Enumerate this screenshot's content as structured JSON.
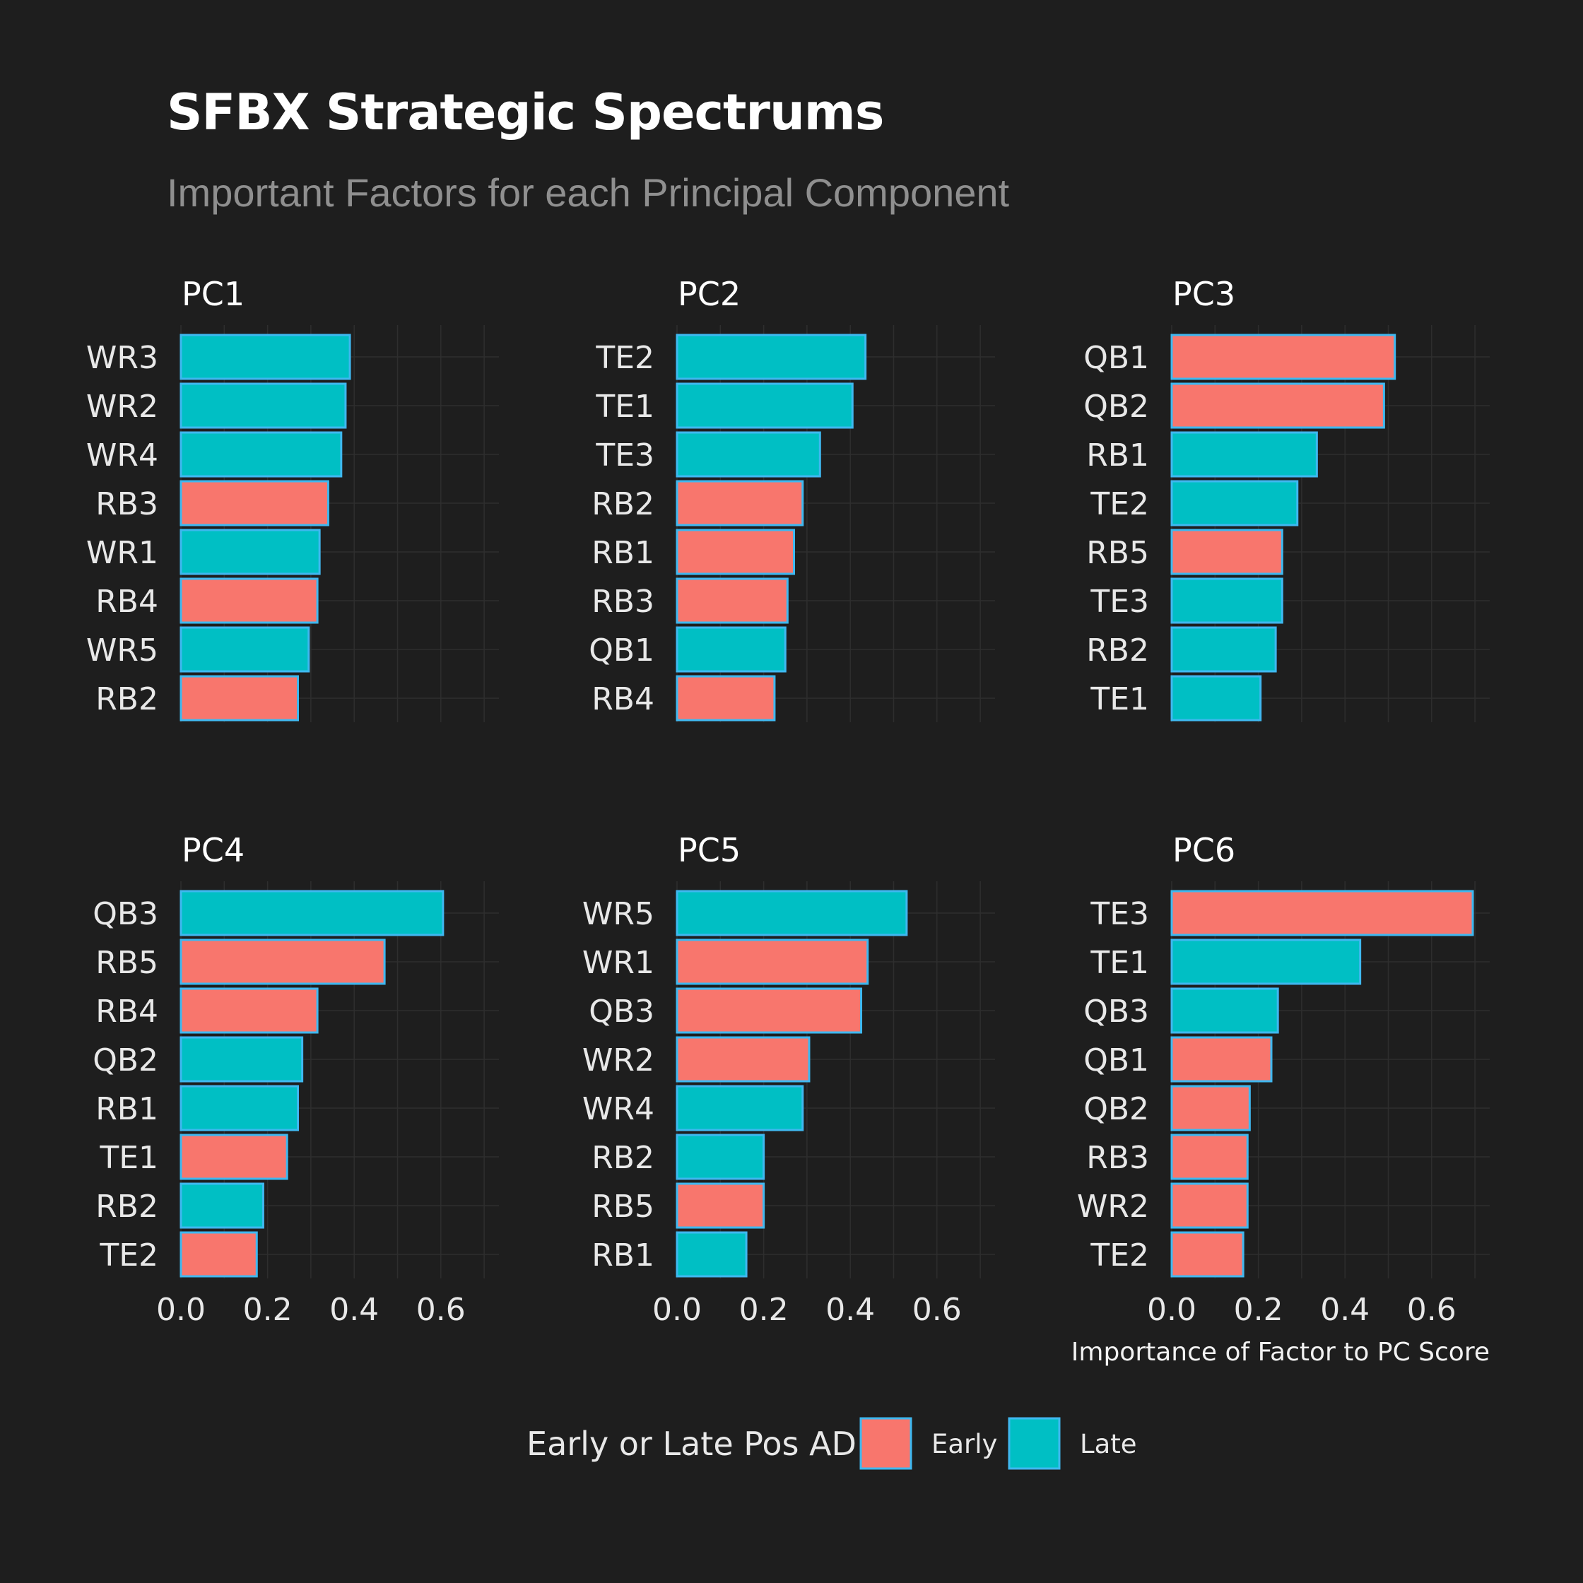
{
  "title": "SFBX Strategic Spectrums",
  "subtitle": "Important Factors for each Principal Component",
  "colors": {
    "background": "#1e1e1e",
    "early": "#f8766d",
    "late": "#00bfc4",
    "bar_outline": "#3fb8f0",
    "grid": "#2e2e2e",
    "text": "#e8e8e8"
  },
  "chart_data": [
    {
      "type": "bar",
      "orientation": "horizontal",
      "title": "PC1",
      "categories": [
        "WR3",
        "WR2",
        "WR4",
        "RB3",
        "WR1",
        "RB4",
        "WR5",
        "RB2"
      ],
      "values": [
        0.39,
        0.38,
        0.37,
        0.34,
        0.32,
        0.315,
        0.295,
        0.27
      ],
      "groups": [
        "Late",
        "Late",
        "Late",
        "Early",
        "Late",
        "Early",
        "Late",
        "Early"
      ],
      "xticks": [
        "0.0",
        "0.2",
        "0.4",
        "0.6"
      ],
      "xlim": [
        0,
        0.73
      ],
      "xlabel": ""
    },
    {
      "type": "bar",
      "orientation": "horizontal",
      "title": "PC2",
      "categories": [
        "TE2",
        "TE1",
        "TE3",
        "RB2",
        "RB1",
        "RB3",
        "QB1",
        "RB4"
      ],
      "values": [
        0.435,
        0.405,
        0.33,
        0.29,
        0.27,
        0.255,
        0.25,
        0.225
      ],
      "groups": [
        "Late",
        "Late",
        "Late",
        "Early",
        "Early",
        "Early",
        "Late",
        "Early"
      ],
      "xticks": [
        "0.0",
        "0.2",
        "0.4",
        "0.6"
      ],
      "xlim": [
        0,
        0.73
      ],
      "xlabel": ""
    },
    {
      "type": "bar",
      "orientation": "horizontal",
      "title": "PC3",
      "categories": [
        "QB1",
        "QB2",
        "RB1",
        "TE2",
        "RB5",
        "TE3",
        "RB2",
        "TE1"
      ],
      "values": [
        0.515,
        0.49,
        0.335,
        0.29,
        0.255,
        0.255,
        0.24,
        0.205
      ],
      "groups": [
        "Early",
        "Early",
        "Late",
        "Late",
        "Early",
        "Late",
        "Late",
        "Late"
      ],
      "xticks": [
        "0.0",
        "0.2",
        "0.4",
        "0.6"
      ],
      "xlim": [
        0,
        0.73
      ],
      "xlabel": ""
    },
    {
      "type": "bar",
      "orientation": "horizontal",
      "title": "PC4",
      "categories": [
        "QB3",
        "RB5",
        "RB4",
        "QB2",
        "RB1",
        "TE1",
        "RB2",
        "TE2"
      ],
      "values": [
        0.605,
        0.47,
        0.315,
        0.28,
        0.27,
        0.245,
        0.19,
        0.175
      ],
      "groups": [
        "Late",
        "Early",
        "Early",
        "Late",
        "Late",
        "Early",
        "Late",
        "Early"
      ],
      "xticks": [
        "0.0",
        "0.2",
        "0.4",
        "0.6"
      ],
      "xlim": [
        0,
        0.73
      ],
      "xlabel": ""
    },
    {
      "type": "bar",
      "orientation": "horizontal",
      "title": "PC5",
      "categories": [
        "WR5",
        "WR1",
        "QB3",
        "WR2",
        "WR4",
        "RB2",
        "RB5",
        "RB1"
      ],
      "values": [
        0.53,
        0.44,
        0.425,
        0.305,
        0.29,
        0.2,
        0.2,
        0.16
      ],
      "groups": [
        "Late",
        "Early",
        "Early",
        "Early",
        "Late",
        "Late",
        "Early",
        "Late"
      ],
      "xticks": [
        "0.0",
        "0.2",
        "0.4",
        "0.6"
      ],
      "xlim": [
        0,
        0.73
      ],
      "xlabel": ""
    },
    {
      "type": "bar",
      "orientation": "horizontal",
      "title": "PC6",
      "categories": [
        "TE3",
        "TE1",
        "QB3",
        "QB1",
        "QB2",
        "RB3",
        "WR2",
        "TE2"
      ],
      "values": [
        0.695,
        0.435,
        0.245,
        0.23,
        0.18,
        0.175,
        0.175,
        0.165
      ],
      "groups": [
        "Early",
        "Late",
        "Late",
        "Early",
        "Early",
        "Early",
        "Early",
        "Early"
      ],
      "xticks": [
        "0.0",
        "0.2",
        "0.4",
        "0.6"
      ],
      "xlim": [
        0,
        0.73
      ],
      "xlabel": "Importance of Factor to PC Score"
    }
  ],
  "legend": {
    "title": "Early or Late Pos ADP",
    "position": "bottom",
    "items": [
      {
        "label": "Early",
        "color": "#f8766d"
      },
      {
        "label": "Late",
        "color": "#00bfc4"
      }
    ]
  }
}
